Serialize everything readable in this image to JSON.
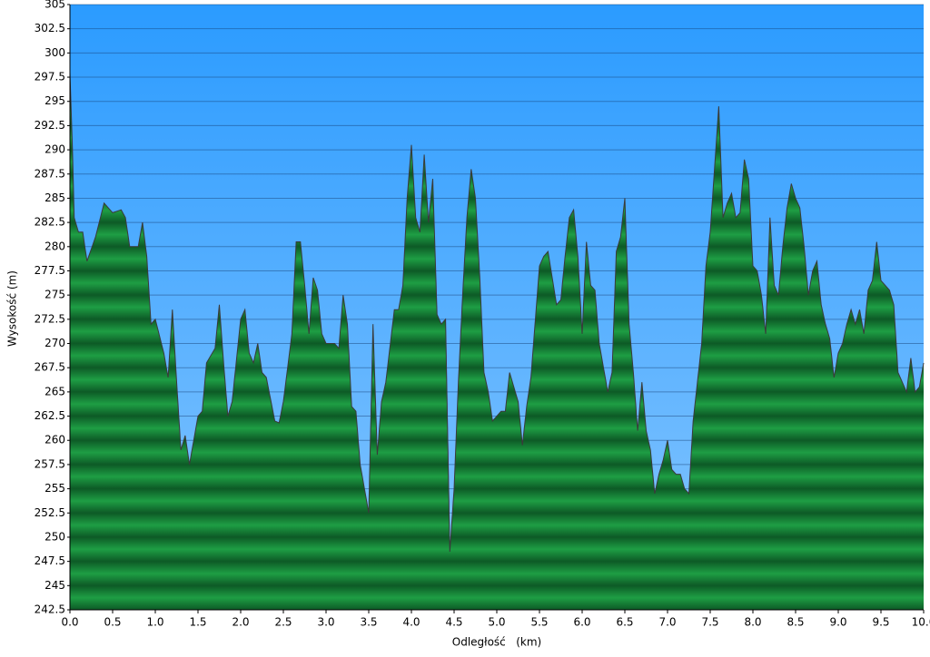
{
  "chart_data": {
    "type": "area",
    "xlabel": "Odległość   (km)",
    "ylabel": "Wysokość (m)",
    "x": [
      0.0,
      0.03,
      0.05,
      0.1,
      0.15,
      0.2,
      0.3,
      0.4,
      0.5,
      0.6,
      0.65,
      0.7,
      0.8,
      0.85,
      0.9,
      0.95,
      1.0,
      1.1,
      1.15,
      1.2,
      1.25,
      1.3,
      1.35,
      1.4,
      1.45,
      1.5,
      1.55,
      1.6,
      1.7,
      1.75,
      1.8,
      1.85,
      1.9,
      2.0,
      2.05,
      2.1,
      2.15,
      2.2,
      2.25,
      2.3,
      2.4,
      2.45,
      2.5,
      2.6,
      2.65,
      2.7,
      2.75,
      2.8,
      2.85,
      2.9,
      2.95,
      3.0,
      3.1,
      3.15,
      3.2,
      3.25,
      3.3,
      3.35,
      3.4,
      3.45,
      3.5,
      3.55,
      3.6,
      3.65,
      3.7,
      3.8,
      3.85,
      3.9,
      3.95,
      4.0,
      4.05,
      4.1,
      4.15,
      4.2,
      4.25,
      4.3,
      4.35,
      4.4,
      4.45,
      4.5,
      4.55,
      4.6,
      4.65,
      4.7,
      4.75,
      4.8,
      4.85,
      4.9,
      4.95,
      5.0,
      5.05,
      5.1,
      5.15,
      5.2,
      5.25,
      5.3,
      5.35,
      5.4,
      5.5,
      5.55,
      5.6,
      5.7,
      5.75,
      5.8,
      5.85,
      5.9,
      5.95,
      6.0,
      6.05,
      6.1,
      6.15,
      6.2,
      6.3,
      6.35,
      6.4,
      6.45,
      6.5,
      6.55,
      6.6,
      6.65,
      6.7,
      6.75,
      6.8,
      6.85,
      6.9,
      6.95,
      7.0,
      7.05,
      7.1,
      7.15,
      7.2,
      7.25,
      7.3,
      7.35,
      7.4,
      7.45,
      7.5,
      7.55,
      7.6,
      7.65,
      7.7,
      7.75,
      7.8,
      7.85,
      7.9,
      7.95,
      8.0,
      8.05,
      8.1,
      8.15,
      8.2,
      8.25,
      8.3,
      8.35,
      8.4,
      8.45,
      8.5,
      8.55,
      8.6,
      8.65,
      8.7,
      8.75,
      8.8,
      8.85,
      8.9,
      8.95,
      9.0,
      9.05,
      9.1,
      9.15,
      9.2,
      9.25,
      9.3,
      9.35,
      9.4,
      9.45,
      9.5,
      9.55,
      9.6,
      9.65,
      9.7,
      9.75,
      9.8,
      9.85,
      9.9,
      9.95,
      10.0
    ],
    "values": [
      298,
      290,
      283,
      281.5,
      281.5,
      278.5,
      281,
      284.5,
      283.5,
      283.8,
      283,
      280,
      280,
      282.5,
      279,
      272,
      272.5,
      269,
      266.5,
      273.5,
      266,
      259,
      260.5,
      257.5,
      260,
      262.5,
      263,
      268,
      269.5,
      274,
      268,
      262.5,
      264,
      272.5,
      273.5,
      269,
      268,
      270,
      267,
      266.5,
      262,
      261.8,
      264,
      271,
      280.5,
      280.5,
      276,
      271,
      276.8,
      275.5,
      271,
      270,
      270,
      269.5,
      275,
      272,
      263.5,
      263,
      257.5,
      255,
      252.5,
      272,
      258.5,
      264,
      266,
      273.5,
      273.5,
      276,
      285,
      290.5,
      283,
      281.5,
      289.5,
      282.5,
      287,
      273,
      272,
      272.5,
      248.5,
      255,
      266,
      275,
      283,
      288,
      285,
      277,
      267,
      265,
      262,
      262.5,
      263,
      263,
      267,
      265.5,
      264,
      259.5,
      263.5,
      266.5,
      278,
      279,
      279.5,
      274,
      274.5,
      279,
      283,
      283.8,
      279,
      271,
      280.5,
      276,
      275.5,
      270,
      265,
      267,
      279.5,
      281,
      285,
      272,
      267,
      261,
      266,
      261,
      259,
      254.5,
      256.5,
      258,
      260,
      257,
      256.5,
      256.5,
      255,
      254.5,
      262,
      266,
      270,
      278,
      281.5,
      288,
      294.5,
      283,
      284.5,
      285.5,
      283,
      283.5,
      289,
      287,
      278,
      277.5,
      275,
      271,
      283,
      276,
      275,
      280,
      284,
      286.5,
      285,
      284,
      280,
      275,
      277.5,
      278.5,
      274,
      272,
      270.5,
      266.5,
      269,
      270,
      272,
      273.5,
      272,
      273.5,
      271,
      275.5,
      276.5,
      280.5,
      276.5,
      276,
      275.5,
      274,
      267,
      266,
      265,
      268.5,
      265,
      265.5,
      268
    ],
    "color": "#1e9e44",
    "xlim": [
      0,
      10
    ],
    "xticks": [
      {
        "value": 0,
        "label": "0.0"
      },
      0.5,
      {
        "value": 1,
        "label": "1.0"
      },
      1.5,
      {
        "value": 2,
        "label": "2.0"
      },
      2.5,
      {
        "value": 3,
        "label": "3.0"
      },
      3.5,
      {
        "value": 4,
        "label": "4.0"
      },
      4.5,
      {
        "value": 5,
        "label": "5.0"
      },
      5.5,
      {
        "value": 6,
        "label": "6.0"
      },
      6.5,
      {
        "value": 7,
        "label": "7.0"
      },
      7.5,
      {
        "value": 8,
        "label": "8.0"
      },
      8.5,
      {
        "value": 9,
        "label": "9.0"
      },
      9.5,
      {
        "value": 10,
        "label": "10.0"
      }
    ],
    "ylim": [
      242.5,
      305
    ],
    "yticks": [
      242.5,
      245,
      247.5,
      250,
      252.5,
      255,
      257.5,
      260,
      262.5,
      265,
      267.5,
      270,
      272.5,
      275,
      277.5,
      280,
      282.5,
      285,
      287.5,
      290,
      292.5,
      295,
      297.5,
      300,
      302.5,
      305
    ],
    "grid": true
  }
}
